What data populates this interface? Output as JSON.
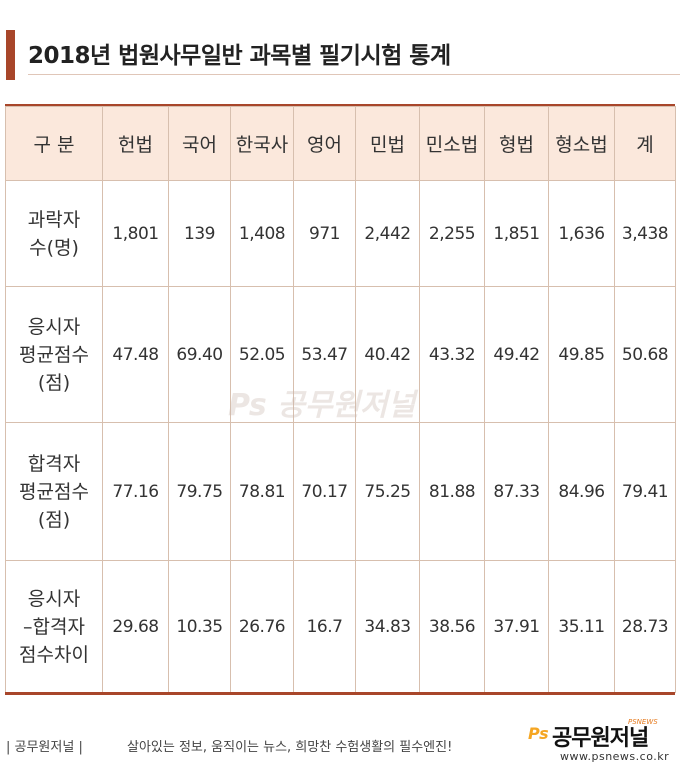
{
  "title": "2018년 법원사무일반 과목별 필기시험 통계",
  "table": {
    "columns": [
      "구  분",
      "헌법",
      "국어",
      "한국사",
      "영어",
      "민법",
      "민소법",
      "형법",
      "형소법",
      "계"
    ],
    "rows": [
      {
        "label": [
          "과락자",
          "수(명)"
        ],
        "values": [
          "1,801",
          "139",
          "1,408",
          "971",
          "2,442",
          "2,255",
          "1,851",
          "1,636",
          "3,438"
        ]
      },
      {
        "label": [
          "응시자",
          "평균점수",
          "(점)"
        ],
        "values": [
          "47.48",
          "69.40",
          "52.05",
          "53.47",
          "40.42",
          "43.32",
          "49.42",
          "49.85",
          "50.68"
        ]
      },
      {
        "label": [
          "합격자",
          "평균점수",
          "(점)"
        ],
        "values": [
          "77.16",
          "79.75",
          "78.81",
          "70.17",
          "75.25",
          "81.88",
          "87.33",
          "84.96",
          "79.41"
        ]
      },
      {
        "label": [
          "응시자",
          "–합격자",
          "점수차이"
        ],
        "values": [
          "29.68",
          "10.35",
          "26.76",
          "16.7",
          "34.83",
          "38.56",
          "37.91",
          "35.11",
          "28.73"
        ]
      }
    ]
  },
  "watermark": {
    "ps": "Ps",
    "name": "공무원저널"
  },
  "footer": {
    "brand": "| 공무원저널 |",
    "slogan": "살아있는 정보, 움직이는 뉴스, 희망찬 수험생활의 필수엔진!",
    "logo_ps": "Ps",
    "logo_name": "공무원저널",
    "logo_tag": "PSNEWS",
    "url": "www.psnews.co.kr"
  },
  "colors": {
    "accent": "#a8462a",
    "header_bg": "#fbe8dc",
    "border": "#d7bfae",
    "logo_orange": "#f5a623"
  }
}
